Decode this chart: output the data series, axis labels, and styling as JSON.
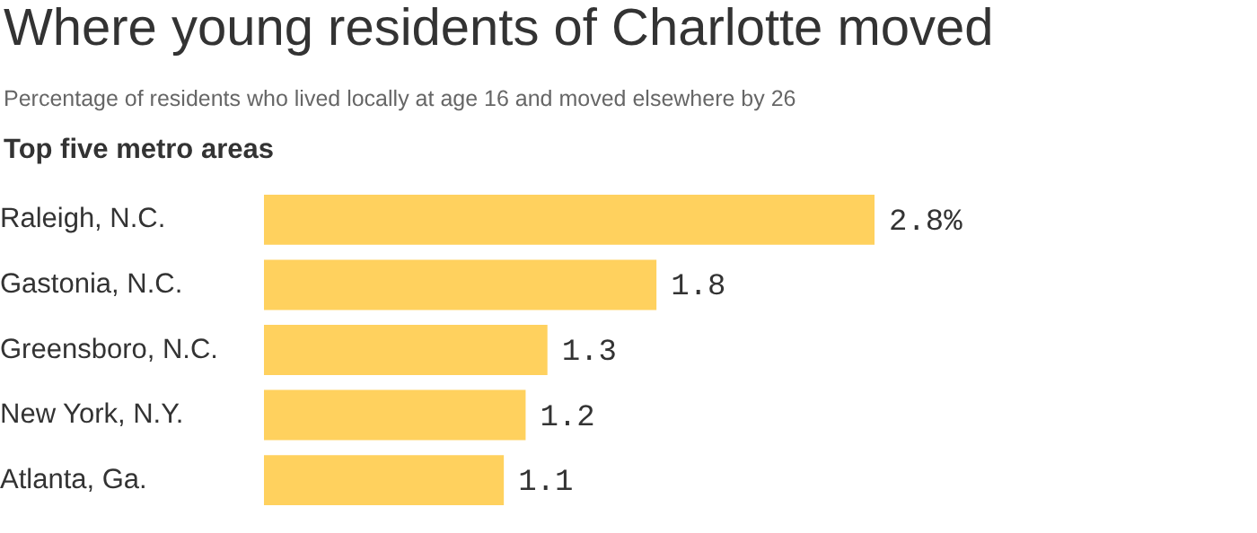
{
  "chart_data": {
    "type": "bar",
    "orientation": "horizontal",
    "title": "Where young residents of Charlotte moved",
    "subtitle": "Percentage of residents who lived locally at age 16 and moved elsewhere by 26",
    "ylabel": "Top five metro areas",
    "categories": [
      "Raleigh, N.C.",
      "Gastonia, N.C.",
      "Greensboro, N.C.",
      "New York, N.Y.",
      "Atlanta, Ga."
    ],
    "values": [
      2.8,
      1.8,
      1.3,
      1.2,
      1.1
    ],
    "value_labels": [
      "2.8%",
      "1.8",
      "1.3",
      "1.2",
      "1.1"
    ],
    "color": "#ffd15e",
    "legend": false,
    "tick_labels": "y"
  }
}
